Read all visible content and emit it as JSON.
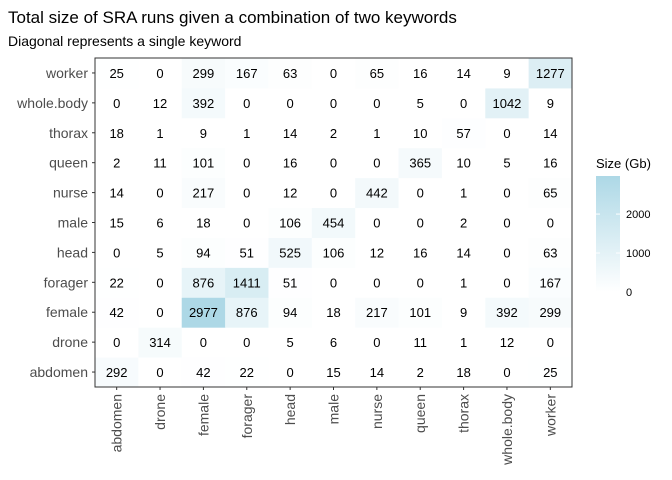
{
  "chart_data": {
    "type": "heatmap",
    "title": "Total size of SRA runs given a combination of two keywords",
    "subtitle": "Diagonal represents a single keyword",
    "x_categories": [
      "abdomen",
      "drone",
      "female",
      "forager",
      "head",
      "male",
      "nurse",
      "queen",
      "thorax",
      "whole.body",
      "worker"
    ],
    "y_categories": [
      "abdomen",
      "drone",
      "female",
      "forager",
      "head",
      "male",
      "nurse",
      "queen",
      "thorax",
      "whole.body",
      "worker"
    ],
    "values": [
      [
        292,
        0,
        42,
        22,
        0,
        15,
        14,
        2,
        18,
        0,
        25
      ],
      [
        0,
        314,
        0,
        0,
        5,
        6,
        0,
        11,
        1,
        12,
        0
      ],
      [
        42,
        0,
        2977,
        876,
        94,
        18,
        217,
        101,
        9,
        392,
        299
      ],
      [
        22,
        0,
        876,
        1411,
        51,
        0,
        0,
        0,
        1,
        0,
        167
      ],
      [
        0,
        5,
        94,
        51,
        525,
        106,
        12,
        16,
        14,
        0,
        63
      ],
      [
        15,
        6,
        18,
        0,
        106,
        454,
        0,
        0,
        2,
        0,
        0
      ],
      [
        14,
        0,
        217,
        0,
        12,
        0,
        442,
        0,
        1,
        0,
        65
      ],
      [
        2,
        11,
        101,
        0,
        16,
        0,
        0,
        365,
        10,
        5,
        16
      ],
      [
        18,
        1,
        9,
        1,
        14,
        2,
        1,
        10,
        57,
        0,
        14
      ],
      [
        0,
        12,
        392,
        0,
        0,
        0,
        0,
        5,
        0,
        1042,
        9
      ],
      [
        25,
        0,
        299,
        167,
        63,
        0,
        65,
        16,
        14,
        9,
        1277
      ]
    ],
    "legend": {
      "title": "Size (Gb)",
      "ticks": [
        0,
        1000,
        2000
      ],
      "range": [
        0,
        2977
      ],
      "color_low": "#ffffff",
      "color_high": "#add8e6",
      "placement": "right"
    },
    "grid": false
  }
}
